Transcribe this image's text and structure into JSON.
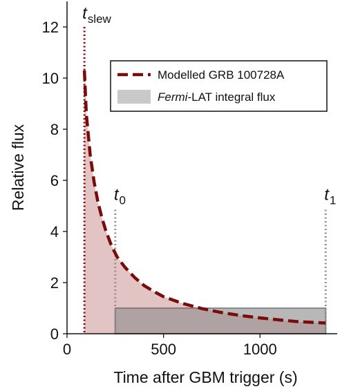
{
  "chart_data": {
    "type": "line",
    "xlabel": "Time after GBM trigger (s)",
    "ylabel": "Relative flux",
    "xlim": [
      0,
      1400
    ],
    "ylim": [
      0,
      13
    ],
    "x_ticks": [
      0,
      500,
      1000
    ],
    "y_ticks": [
      0,
      2,
      4,
      6,
      8,
      10,
      12
    ],
    "grid": false,
    "legend_position": "top-right",
    "series": [
      {
        "name": "Modelled GRB 100728A",
        "style": "dashed",
        "color": "#7a0b0b",
        "fill": "#f2dede",
        "x": [
          90,
          100,
          120,
          140,
          160,
          180,
          200,
          230,
          260,
          300,
          350,
          400,
          450,
          500,
          600,
          700,
          800,
          900,
          1000,
          1100,
          1200,
          1340
        ],
        "y": [
          10.3,
          8.6,
          7.0,
          5.95,
          5.15,
          4.55,
          4.05,
          3.45,
          3.0,
          2.6,
          2.2,
          1.88,
          1.65,
          1.45,
          1.18,
          0.98,
          0.83,
          0.71,
          0.62,
          0.54,
          0.47,
          0.42
        ]
      },
      {
        "name": "Fermi-LAT integral flux",
        "name_italic": "Fermi",
        "name_rest": "-LAT integral flux",
        "style": "band",
        "color": "#8a8a8a",
        "fill": "#b8b8b8",
        "x_start": 250,
        "x_end": 1340,
        "y": 1.0
      }
    ],
    "markers": [
      {
        "label": "t",
        "sub": "slew",
        "x": 90,
        "color": "#8b0000",
        "top": 12.0
      },
      {
        "label": "t",
        "sub": "0",
        "x": 250,
        "color": "#909090",
        "top": 4.85
      },
      {
        "label": "t",
        "sub": "1",
        "x": 1340,
        "color": "#909090",
        "top": 4.85
      }
    ]
  }
}
